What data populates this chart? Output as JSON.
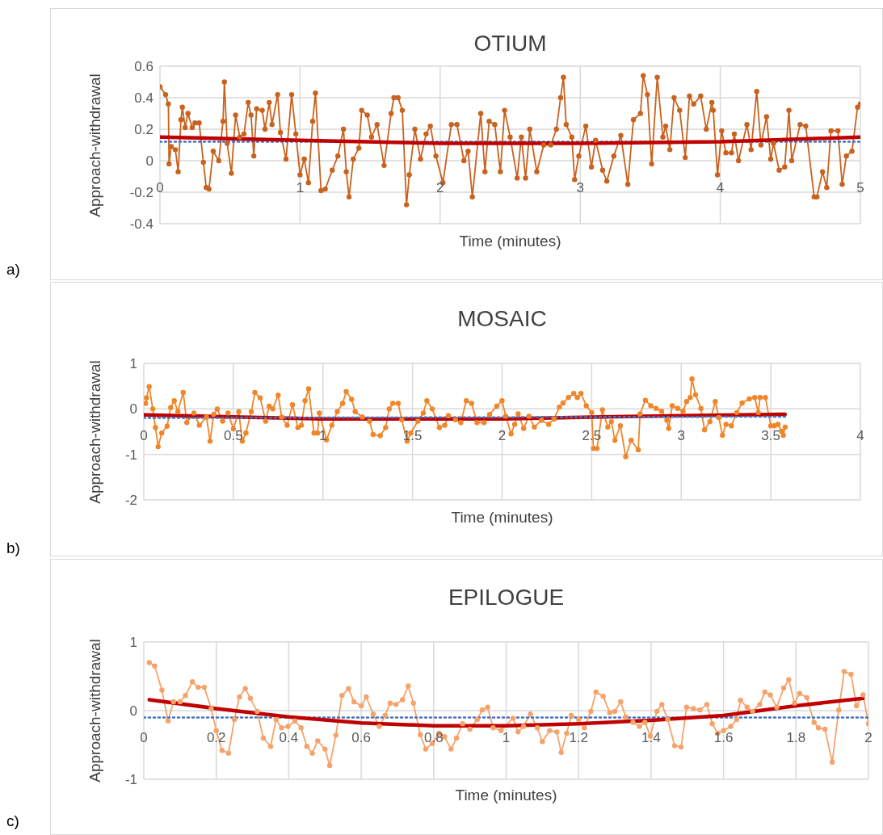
{
  "chart_data": [
    {
      "type": "line",
      "title": "OTIUM",
      "xlabel": "Time (minutes)",
      "ylabel": "Approach-withdrawal",
      "annotations": [
        "a)"
      ],
      "xlim": [
        0,
        5
      ],
      "xticks": [
        0,
        1,
        2,
        3,
        4,
        5
      ],
      "ylim": [
        -0.4,
        0.6
      ],
      "yticks": [
        -0.4,
        -0.2,
        0,
        0.2,
        0.4,
        0.6
      ],
      "grid": true,
      "series": [
        {
          "type": "line",
          "color": "#c8621e",
          "marker": "circle",
          "line_style": "solid",
          "x": [
            0,
            0.04,
            0.06,
            0.065,
            0.08,
            0.11,
            0.13,
            0.15,
            0.16,
            0.18,
            0.2,
            0.23,
            0.25,
            0.28,
            0.31,
            0.33,
            0.35,
            0.38,
            0.42,
            0.45,
            0.46,
            0.48,
            0.51,
            0.54,
            0.57,
            0.6,
            0.63,
            0.65,
            0.67,
            0.69,
            0.73,
            0.75,
            0.78,
            0.8,
            0.84,
            0.86,
            0.9,
            0.94,
            0.97,
            1.0,
            1.03,
            1.06,
            1.09,
            1.11,
            1.15,
            1.18,
            1.23,
            1.27,
            1.31,
            1.33,
            1.35,
            1.38,
            1.42,
            1.44,
            1.48,
            1.51,
            1.55,
            1.6,
            1.65,
            1.67,
            1.7,
            1.73,
            1.76,
            1.78,
            1.82,
            1.86,
            1.9,
            1.93,
            1.97,
            2.02,
            2.08,
            2.12,
            2.17,
            2.2,
            2.23,
            2.29,
            2.32,
            2.35,
            2.39,
            2.43,
            2.46,
            2.5,
            2.55,
            2.58,
            2.61,
            2.64,
            2.69,
            2.74,
            2.79,
            2.83,
            2.86,
            2.88,
            2.9,
            2.94,
            2.96,
            2.99,
            3.04,
            3.08,
            3.11,
            3.16,
            3.19,
            3.24,
            3.29,
            3.34,
            3.38,
            3.43,
            3.45,
            3.48,
            3.51,
            3.55,
            3.59,
            3.61,
            3.64,
            3.67,
            3.71,
            3.75,
            3.78,
            3.81,
            3.86,
            3.9,
            3.94,
            3.95,
            3.98,
            4.01,
            4.04,
            4.08,
            4.1,
            4.13,
            4.19,
            4.22,
            4.26,
            4.29,
            4.33,
            4.36,
            4.38,
            4.42,
            4.46,
            4.49,
            4.51,
            4.57,
            4.61,
            4.67,
            4.69,
            4.73,
            4.76,
            4.79,
            4.84,
            4.87,
            4.9,
            4.94,
            4.98,
            5.0
          ],
          "values": [
            0.47,
            0.42,
            0.36,
            -0.02,
            0.09,
            0.07,
            -0.07,
            0.26,
            0.34,
            0.21,
            0.3,
            0.21,
            0.24,
            0.24,
            -0.01,
            -0.17,
            -0.18,
            0.06,
            0.0,
            0.25,
            0.5,
            0.11,
            -0.08,
            0.29,
            0.15,
            0.17,
            0.37,
            0.29,
            0.03,
            0.33,
            0.32,
            0.2,
            0.37,
            0.23,
            0.42,
            0.18,
            0.01,
            0.42,
            0.17,
            -0.09,
            0.01,
            -0.14,
            0.25,
            0.43,
            -0.19,
            -0.18,
            -0.06,
            0.03,
            0.2,
            -0.07,
            -0.23,
            0.01,
            0.08,
            0.32,
            0.29,
            0.15,
            0.23,
            -0.03,
            0.3,
            0.4,
            0.4,
            0.32,
            -0.28,
            -0.09,
            0.2,
            0.01,
            0.17,
            0.22,
            0.03,
            -0.14,
            0.23,
            0.23,
            0.0,
            0.06,
            -0.23,
            0.3,
            -0.07,
            0.25,
            0.23,
            -0.07,
            0.32,
            0.15,
            -0.11,
            0.15,
            -0.11,
            0.2,
            -0.07,
            0.1,
            0.1,
            0.2,
            0.4,
            0.53,
            0.23,
            0.15,
            -0.12,
            0.03,
            0.22,
            -0.04,
            0.13,
            -0.06,
            -0.13,
            0.03,
            0.16,
            -0.15,
            0.26,
            0.3,
            0.54,
            0.42,
            -0.02,
            0.53,
            0.15,
            0.22,
            0.07,
            0.4,
            0.32,
            0.02,
            0.41,
            0.36,
            0.41,
            0.2,
            0.37,
            0.32,
            -0.09,
            0.19,
            0.05,
            0.05,
            0.17,
            0.0,
            0.23,
            0.07,
            0.44,
            0.1,
            0.28,
            0.01,
            0.11,
            -0.06,
            -0.04,
            0.32,
            0.0,
            0.23,
            0.22,
            -0.23,
            -0.23,
            -0.07,
            -0.17,
            0.19,
            0.19,
            -0.15,
            0.03,
            0.06,
            0.34,
            0.36
          ]
        },
        {
          "type": "line",
          "color": "#4472c4",
          "marker": "none",
          "line_style": "dotted",
          "x": [
            0,
            5
          ],
          "values": [
            0.12,
            0.12
          ]
        },
        {
          "type": "line",
          "color": "#c00000",
          "marker": "none",
          "line_style": "solid",
          "x": [
            0,
            1,
            2,
            2.5,
            3,
            4,
            5
          ],
          "values": [
            0.15,
            0.13,
            0.11,
            0.11,
            0.11,
            0.12,
            0.15
          ]
        }
      ]
    },
    {
      "type": "line",
      "title": "MOSAIC",
      "xlabel": "Time (minutes)",
      "ylabel": "Approach-withdrawal",
      "annotations": [
        "b)"
      ],
      "xlim": [
        0,
        4
      ],
      "xticks": [
        0,
        0.5,
        1,
        1.5,
        2,
        2.5,
        3,
        3.5,
        4
      ],
      "ylim": [
        -2,
        1
      ],
      "yticks": [
        -2,
        -1,
        0,
        1
      ],
      "grid": true,
      "series": [
        {
          "type": "line",
          "color": "#f0862a",
          "marker": "circle",
          "line_style": "solid",
          "x": [
            0.01,
            0.015,
            0.03,
            0.05,
            0.065,
            0.08,
            0.1,
            0.13,
            0.15,
            0.17,
            0.19,
            0.22,
            0.24,
            0.28,
            0.31,
            0.35,
            0.37,
            0.39,
            0.41,
            0.44,
            0.47,
            0.5,
            0.53,
            0.55,
            0.57,
            0.6,
            0.62,
            0.65,
            0.68,
            0.7,
            0.72,
            0.75,
            0.77,
            0.8,
            0.83,
            0.86,
            0.88,
            0.9,
            0.92,
            0.95,
            0.97,
            0.98,
            1.02,
            1.05,
            1.08,
            1.11,
            1.13,
            1.16,
            1.18,
            1.22,
            1.26,
            1.28,
            1.32,
            1.35,
            1.37,
            1.39,
            1.42,
            1.44,
            1.47,
            1.49,
            1.53,
            1.56,
            1.58,
            1.61,
            1.65,
            1.68,
            1.7,
            1.74,
            1.77,
            1.8,
            1.83,
            1.86,
            1.9,
            1.93,
            1.97,
            2.0,
            2.02,
            2.05,
            2.07,
            2.09,
            2.12,
            2.15,
            2.18,
            2.22,
            2.26,
            2.29,
            2.32,
            2.34,
            2.37,
            2.4,
            2.42,
            2.44,
            2.47,
            2.5,
            2.51,
            2.53,
            2.56,
            2.59,
            2.61,
            2.63,
            2.66,
            2.69,
            2.72,
            2.76,
            2.77,
            2.8,
            2.83,
            2.86,
            2.89,
            2.92,
            2.93,
            2.95,
            2.98,
            3.01,
            3.03,
            3.05,
            3.06,
            3.08,
            3.11,
            3.13,
            3.16,
            3.19,
            3.21,
            3.23,
            3.25,
            3.28,
            3.31,
            3.34,
            3.38,
            3.41,
            3.43,
            3.44,
            3.47,
            3.5,
            3.52,
            3.54,
            3.56,
            3.57,
            3.58
          ],
          "values": [
            0.12,
            0.24,
            0.49,
            0.0,
            -0.41,
            -0.83,
            -0.53,
            -0.38,
            0.03,
            0.18,
            -0.06,
            0.36,
            -0.3,
            -0.09,
            -0.36,
            -0.18,
            -0.71,
            -0.12,
            0.0,
            -0.27,
            -0.09,
            -0.44,
            -0.06,
            -0.71,
            -0.53,
            -0.06,
            0.36,
            0.24,
            -0.27,
            0.06,
            0.0,
            0.3,
            -0.18,
            -0.36,
            0.09,
            -0.41,
            -0.36,
            0.18,
            0.44,
            -0.53,
            -0.53,
            -0.09,
            -0.68,
            -0.36,
            -0.06,
            0.12,
            0.38,
            0.21,
            -0.06,
            -0.18,
            -0.27,
            -0.56,
            -0.59,
            -0.41,
            0.0,
            0.12,
            0.12,
            -0.24,
            -0.71,
            -0.53,
            -0.27,
            -0.09,
            0.18,
            0.0,
            -0.41,
            -0.36,
            -0.15,
            -0.24,
            -0.3,
            0.18,
            0.12,
            -0.3,
            -0.3,
            -0.12,
            0.06,
            0.18,
            -0.16,
            -0.55,
            -0.34,
            -0.11,
            -0.43,
            -0.16,
            -0.4,
            -0.25,
            -0.34,
            -0.22,
            0.04,
            0.13,
            0.25,
            0.34,
            0.25,
            0.34,
            0.07,
            -0.08,
            -0.87,
            -0.87,
            -0.02,
            -0.4,
            -0.28,
            -0.69,
            -0.37,
            -1.05,
            -0.69,
            -0.9,
            -0.11,
            0.19,
            0.07,
            0.01,
            -0.05,
            -0.25,
            -0.43,
            0.07,
            0.01,
            -0.05,
            0.16,
            0.25,
            0.66,
            0.31,
            0.01,
            -0.46,
            -0.28,
            0.16,
            -0.19,
            -0.58,
            -0.34,
            -0.37,
            -0.08,
            0.13,
            0.22,
            0.25,
            -0.08,
            0.25,
            0.25,
            -0.37,
            -0.37,
            -0.34,
            -0.49,
            -0.58,
            -0.4
          ]
        },
        {
          "type": "line",
          "color": "#c00000",
          "marker": "none",
          "line_style": "solid",
          "x": [
            0,
            1,
            2,
            2.5,
            3,
            3.58
          ],
          "values": [
            -0.13,
            -0.22,
            -0.22,
            -0.18,
            -0.15,
            -0.12
          ]
        },
        {
          "type": "line",
          "color": "#4472c4",
          "marker": "none",
          "line_style": "dotted",
          "x": [
            0,
            3.58
          ],
          "values": [
            -0.2,
            -0.17
          ]
        }
      ]
    },
    {
      "type": "line",
      "title": "EPILOGUE",
      "xlabel": "Time (minutes)",
      "ylabel": "Approach-withdrawal",
      "annotations": [
        "c)"
      ],
      "xlim": [
        0,
        2
      ],
      "xticks": [
        0,
        0.2,
        0.4,
        0.6,
        0.8,
        1,
        1.2,
        1.4,
        1.6,
        1.8,
        2
      ],
      "ylim": [
        -1,
        1
      ],
      "yticks": [
        -1,
        0,
        1
      ],
      "grid": true,
      "series": [
        {
          "type": "line",
          "color": "#f5a36b",
          "marker": "circle",
          "line_style": "solid",
          "x": [
            0.015,
            0.03,
            0.05,
            0.067,
            0.082,
            0.1,
            0.115,
            0.134,
            0.15,
            0.167,
            0.186,
            0.2,
            0.216,
            0.234,
            0.25,
            0.264,
            0.28,
            0.294,
            0.313,
            0.33,
            0.35,
            0.365,
            0.38,
            0.398,
            0.417,
            0.434,
            0.45,
            0.465,
            0.48,
            0.5,
            0.513,
            0.53,
            0.547,
            0.565,
            0.58,
            0.6,
            0.614,
            0.633,
            0.65,
            0.666,
            0.68,
            0.696,
            0.714,
            0.73,
            0.744,
            0.763,
            0.778,
            0.796,
            0.815,
            0.83,
            0.848,
            0.863,
            0.88,
            0.9,
            0.92,
            0.934,
            0.949,
            0.964,
            0.986,
            1.019,
            1.033,
            1.048,
            1.067,
            1.086,
            1.1,
            1.12,
            1.14,
            1.152,
            1.167,
            1.18,
            1.2,
            1.216,
            1.234,
            1.248,
            1.268,
            1.286,
            1.3,
            1.316,
            1.33,
            1.35,
            1.368,
            1.383,
            1.398,
            1.416,
            1.43,
            1.446,
            1.465,
            1.483,
            1.498,
            1.517,
            1.535,
            1.554,
            1.569,
            1.584,
            1.6,
            1.62,
            1.636,
            1.647,
            1.665,
            1.68,
            1.7,
            1.714,
            1.729,
            1.747,
            1.766,
            1.78,
            1.796,
            1.81,
            1.83,
            1.85,
            1.862,
            1.88,
            1.9,
            1.918,
            1.933,
            1.952,
            1.967,
            1.985,
            2.0
          ],
          "values": [
            0.7,
            0.65,
            0.3,
            -0.15,
            0.13,
            0.13,
            0.22,
            0.42,
            0.34,
            0.34,
            0.03,
            -0.29,
            -0.58,
            -0.62,
            -0.13,
            0.2,
            0.32,
            0.18,
            -0.01,
            -0.4,
            -0.52,
            -0.13,
            -0.25,
            -0.23,
            -0.15,
            -0.25,
            -0.52,
            -0.62,
            -0.44,
            -0.56,
            -0.8,
            -0.36,
            0.22,
            0.32,
            0.13,
            0.07,
            0.2,
            -0.05,
            -0.23,
            -0.07,
            0.11,
            0.09,
            0.16,
            0.36,
            0.11,
            -0.35,
            -0.56,
            -0.48,
            -0.33,
            -0.38,
            -0.56,
            -0.4,
            -0.19,
            -0.27,
            -0.13,
            0.01,
            0.05,
            -0.25,
            -0.29,
            -0.11,
            -0.31,
            -0.23,
            -0.05,
            -0.25,
            -0.45,
            -0.29,
            -0.31,
            -0.61,
            -0.33,
            -0.07,
            -0.13,
            -0.25,
            -0.01,
            0.27,
            0.21,
            -0.03,
            -0.01,
            0.13,
            -0.09,
            -0.17,
            -0.23,
            -0.17,
            -0.37,
            -0.01,
            0.09,
            -0.13,
            -0.51,
            -0.53,
            0.05,
            0.03,
            0.01,
            0.09,
            -0.19,
            -0.33,
            -0.29,
            -0.23,
            -0.13,
            0.15,
            0.05,
            -0.01,
            0.09,
            0.27,
            0.23,
            0.05,
            0.33,
            0.45,
            0.11,
            0.25,
            0.19,
            -0.17,
            -0.25,
            -0.27,
            -0.75,
            0.01,
            0.57,
            0.53,
            0.07,
            0.23,
            -0.19
          ]
        },
        {
          "type": "line",
          "color": "#4472c4",
          "marker": "none",
          "line_style": "dotted",
          "x": [
            0,
            2
          ],
          "values": [
            -0.1,
            -0.1
          ]
        },
        {
          "type": "line",
          "color": "#c00000",
          "marker": "none",
          "line_style": "solid",
          "x": [
            0.015,
            0.2,
            0.4,
            0.6,
            0.8,
            1,
            1.2,
            1.4,
            1.6,
            1.8,
            1.985
          ],
          "values": [
            0.16,
            0.03,
            -0.09,
            -0.18,
            -0.22,
            -0.22,
            -0.19,
            -0.14,
            -0.07,
            0.07,
            0.18
          ]
        }
      ]
    }
  ]
}
